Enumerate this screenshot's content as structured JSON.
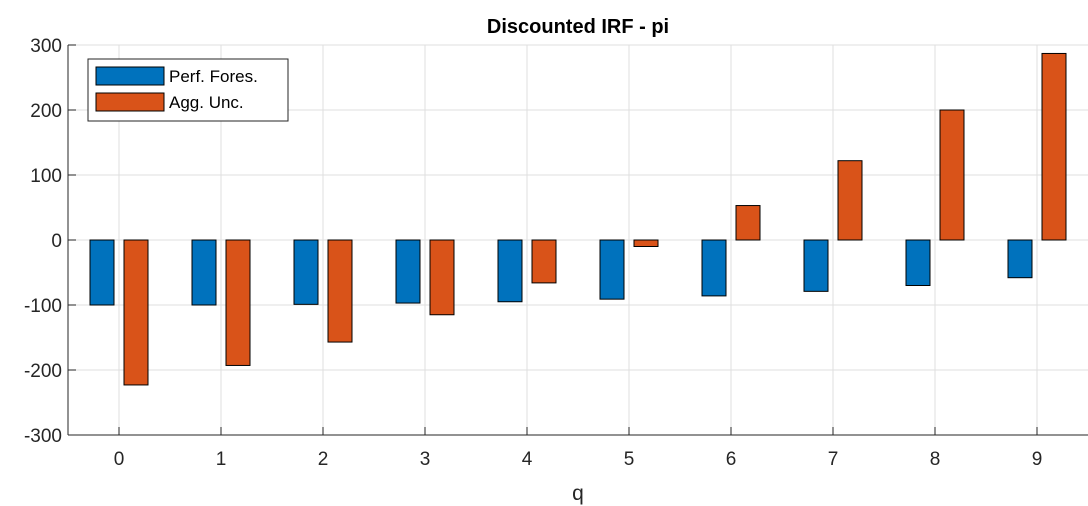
{
  "chart_data": {
    "type": "bar",
    "title": "Discounted IRF - pi",
    "xlabel": "q",
    "ylabel": "",
    "categories": [
      "0",
      "1",
      "2",
      "3",
      "4",
      "5",
      "6",
      "7",
      "8",
      "9"
    ],
    "ylim": [
      -300,
      300
    ],
    "yticks": [
      -300,
      -200,
      -100,
      0,
      100,
      200,
      300
    ],
    "ytick_labels": [
      "-300",
      "-200",
      "-100",
      "0",
      "100",
      "200",
      "300"
    ],
    "grid": true,
    "legend_position": "top-left",
    "series": [
      {
        "name": "Perf. Fores.",
        "color": "#0072BD",
        "values": [
          -100,
          -100,
          -99,
          -97,
          -95,
          -91,
          -86,
          -79,
          -70,
          -58
        ]
      },
      {
        "name": "Agg. Unc.",
        "color": "#D95319",
        "values": [
          -223,
          -193,
          -157,
          -115,
          -66,
          -10,
          53,
          122,
          200,
          287
        ]
      }
    ]
  }
}
